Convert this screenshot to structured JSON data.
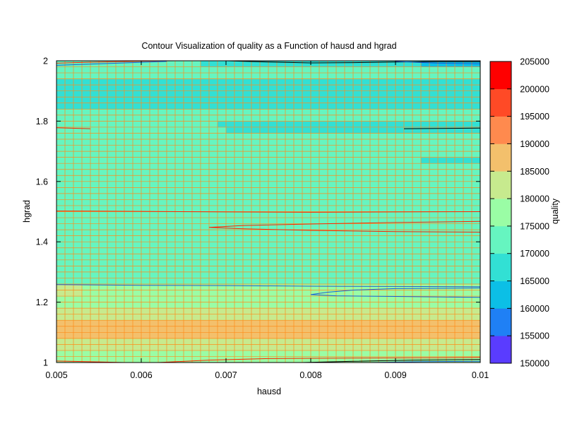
{
  "chart_data": {
    "type": "heatmap",
    "title": "Contour Visualization of quality as a Function of hausd and hgrad",
    "xlabel": "hausd",
    "ylabel": "hgrad",
    "colorbar_label": "quality",
    "xlim": [
      0.005,
      0.01
    ],
    "ylim": [
      1,
      2
    ],
    "zlim": [
      150000,
      205000
    ],
    "x_ticks": [
      "0.005",
      "0.006",
      "0.007",
      "0.008",
      "0.009",
      "0.01"
    ],
    "y_ticks": [
      "1",
      "1.2",
      "1.4",
      "1.6",
      "1.8",
      "2"
    ],
    "colorbar_ticks": [
      "150000",
      "155000",
      "160000",
      "165000",
      "170000",
      "175000",
      "180000",
      "185000",
      "190000",
      "195000",
      "200000",
      "205000"
    ],
    "grid": true,
    "palette": [
      "#7f00ff",
      "#5a3cff",
      "#1f80f5",
      "#0cbfe6",
      "#32e0d4",
      "#66f5c0",
      "#9afda5",
      "#c7ea8e",
      "#f3c06c",
      "#ff8a4e",
      "#ff4a26",
      "#ff0000"
    ],
    "grid_color": "#ff8c1a",
    "x_values": [
      0.005,
      0.0055,
      0.006,
      0.0065,
      0.007,
      0.0075,
      0.008,
      0.0085,
      0.009,
      0.0095,
      0.01
    ],
    "base_profile": [
      {
        "y": 1.0,
        "z": 186000
      },
      {
        "y": 1.02,
        "z": 183000
      },
      {
        "y": 1.04,
        "z": 184500
      },
      {
        "y": 1.06,
        "z": 186000
      },
      {
        "y": 1.08,
        "z": 188500
      },
      {
        "y": 1.1,
        "z": 193000
      },
      {
        "y": 1.12,
        "z": 193500
      },
      {
        "y": 1.14,
        "z": 188500
      },
      {
        "y": 1.16,
        "z": 186500
      },
      {
        "y": 1.18,
        "z": 185500
      },
      {
        "y": 1.2,
        "z": 184000
      },
      {
        "y": 1.22,
        "z": 182000
      },
      {
        "y": 1.24,
        "z": 181000
      },
      {
        "y": 1.26,
        "z": 179000
      },
      {
        "y": 1.28,
        "z": 178000
      },
      {
        "y": 1.3,
        "z": 177500
      },
      {
        "y": 1.32,
        "z": 177000
      },
      {
        "y": 1.34,
        "z": 177000
      },
      {
        "y": 1.36,
        "z": 177000
      },
      {
        "y": 1.4,
        "z": 176500
      },
      {
        "y": 1.44,
        "z": 176000
      },
      {
        "y": 1.48,
        "z": 175500
      },
      {
        "y": 1.5,
        "z": 177000
      },
      {
        "y": 1.56,
        "z": 176500
      },
      {
        "y": 1.62,
        "z": 176000
      },
      {
        "y": 1.68,
        "z": 175500
      },
      {
        "y": 1.74,
        "z": 175500
      },
      {
        "y": 1.8,
        "z": 176000
      },
      {
        "y": 1.86,
        "z": 174000
      },
      {
        "y": 1.9,
        "z": 173000
      },
      {
        "y": 1.94,
        "z": 175000
      },
      {
        "y": 1.98,
        "z": 176500
      },
      {
        "y": 2.0,
        "z": 174000
      }
    ],
    "local_regions": [
      {
        "x": [
          0.0053,
          0.01
        ],
        "y": [
          1.9,
          1.92
        ],
        "z": 172500
      },
      {
        "x": [
          0.005,
          0.01
        ],
        "y": [
          1.88,
          1.9
        ],
        "z": 172500
      },
      {
        "x": [
          0.0061,
          0.01
        ],
        "y": [
          1.86,
          1.88
        ],
        "z": 172500
      },
      {
        "x": [
          0.0069,
          0.01
        ],
        "y": [
          1.78,
          1.8
        ],
        "z": 172500
      },
      {
        "x": [
          0.007,
          0.01
        ],
        "y": [
          1.76,
          1.78
        ],
        "z": 172500
      },
      {
        "x": [
          0.0093,
          0.01
        ],
        "y": [
          1.66,
          1.68
        ],
        "z": 172500
      },
      {
        "x": [
          0.0067,
          0.01
        ],
        "y": [
          1.98,
          2.0
        ],
        "z": 172500
      },
      {
        "x": [
          0.0093,
          0.01
        ],
        "y": [
          1.98,
          2.0
        ],
        "z": 168000
      },
      {
        "x": [
          0.005,
          0.0062
        ],
        "y": [
          1.98,
          2.0
        ],
        "z": 178500
      },
      {
        "x": [
          0.005,
          0.0059
        ],
        "y": [
          1.34,
          1.36
        ],
        "z": 178500
      },
      {
        "x": [
          0.005,
          0.0063
        ],
        "y": [
          1.2,
          1.22
        ],
        "z": 182500
      },
      {
        "x": [
          0.005,
          0.0061
        ],
        "y": [
          1.22,
          1.24
        ],
        "z": 182500
      },
      {
        "x": [
          0.005,
          0.0053
        ],
        "y": [
          1.22,
          1.26
        ],
        "z": 186000
      }
    ],
    "contours": [
      {
        "name": "l1",
        "color": "#ff2200",
        "points": [
          [
            0.005,
            1.992
          ],
          [
            0.0055,
            1.996
          ],
          [
            0.0061,
            1.999
          ],
          [
            0.0064,
            2.0
          ]
        ]
      },
      {
        "name": "l2",
        "color": "#1a5fd6",
        "points": [
          [
            0.005,
            1.985
          ],
          [
            0.0058,
            1.993
          ],
          [
            0.0063,
            1.998
          ]
        ]
      },
      {
        "name": "l3",
        "color": "#000000",
        "points": [
          [
            0.007,
            2.0
          ],
          [
            0.0075,
            1.996
          ],
          [
            0.008,
            1.993
          ],
          [
            0.0085,
            1.994
          ],
          [
            0.009,
            1.996
          ],
          [
            0.0095,
            1.997
          ],
          [
            0.01,
            1.997
          ]
        ]
      },
      {
        "name": "l4",
        "color": "#1a5fd6",
        "points": [
          [
            0.009,
            1.998
          ],
          [
            0.0095,
            1.992
          ],
          [
            0.01,
            1.99
          ]
        ]
      },
      {
        "name": "l5",
        "color": "#ff2200",
        "points": [
          [
            0.005,
            1.778
          ],
          [
            0.0054,
            1.775
          ]
        ]
      },
      {
        "name": "l6",
        "color": "#000000",
        "points": [
          [
            0.0091,
            1.775
          ],
          [
            0.01,
            1.777
          ]
        ]
      },
      {
        "name": "l7",
        "color": "#ff2200",
        "points": [
          [
            0.005,
            1.502
          ],
          [
            0.006,
            1.501
          ],
          [
            0.007,
            1.499
          ],
          [
            0.008,
            1.498
          ],
          [
            0.009,
            1.499
          ],
          [
            0.01,
            1.5
          ]
        ]
      },
      {
        "name": "l8",
        "color": "#ff2200",
        "points": [
          [
            0.01,
            1.468
          ],
          [
            0.009,
            1.464
          ],
          [
            0.008,
            1.459
          ],
          [
            0.0072,
            1.454
          ],
          [
            0.0068,
            1.448
          ],
          [
            0.0072,
            1.443
          ],
          [
            0.008,
            1.438
          ],
          [
            0.009,
            1.434
          ],
          [
            0.01,
            1.432
          ]
        ]
      },
      {
        "name": "l9",
        "color": "#1a5fd6",
        "points": [
          [
            0.005,
            1.258
          ],
          [
            0.006,
            1.256
          ],
          [
            0.007,
            1.255
          ],
          [
            0.008,
            1.253
          ],
          [
            0.009,
            1.252
          ],
          [
            0.01,
            1.251
          ]
        ]
      },
      {
        "name": "l10",
        "color": "#1a5fd6",
        "points": [
          [
            0.01,
            1.247
          ],
          [
            0.009,
            1.245
          ],
          [
            0.0085,
            1.24
          ],
          [
            0.0082,
            1.233
          ],
          [
            0.008,
            1.225
          ],
          [
            0.0083,
            1.221
          ],
          [
            0.009,
            1.219
          ],
          [
            0.01,
            1.216
          ]
        ]
      },
      {
        "name": "l11",
        "color": "#ff2200",
        "points": [
          [
            0.005,
            1.005
          ],
          [
            0.0055,
            1.002
          ],
          [
            0.0058,
            1.0
          ]
        ]
      },
      {
        "name": "l12",
        "color": "#ff2200",
        "points": [
          [
            0.0062,
            1.0
          ],
          [
            0.0068,
            1.008
          ],
          [
            0.0075,
            1.013
          ],
          [
            0.0085,
            1.015
          ],
          [
            0.0095,
            1.016
          ],
          [
            0.01,
            1.017
          ]
        ]
      },
      {
        "name": "l13",
        "color": "#000000",
        "points": [
          [
            0.0079,
            1.0
          ],
          [
            0.0085,
            1.004
          ],
          [
            0.0092,
            1.008
          ],
          [
            0.01,
            1.01
          ]
        ]
      },
      {
        "name": "l14",
        "color": "#1a5fd6",
        "points": [
          [
            0.0087,
            1.0
          ],
          [
            0.0093,
            1.003
          ],
          [
            0.01,
            1.004
          ]
        ]
      }
    ]
  }
}
